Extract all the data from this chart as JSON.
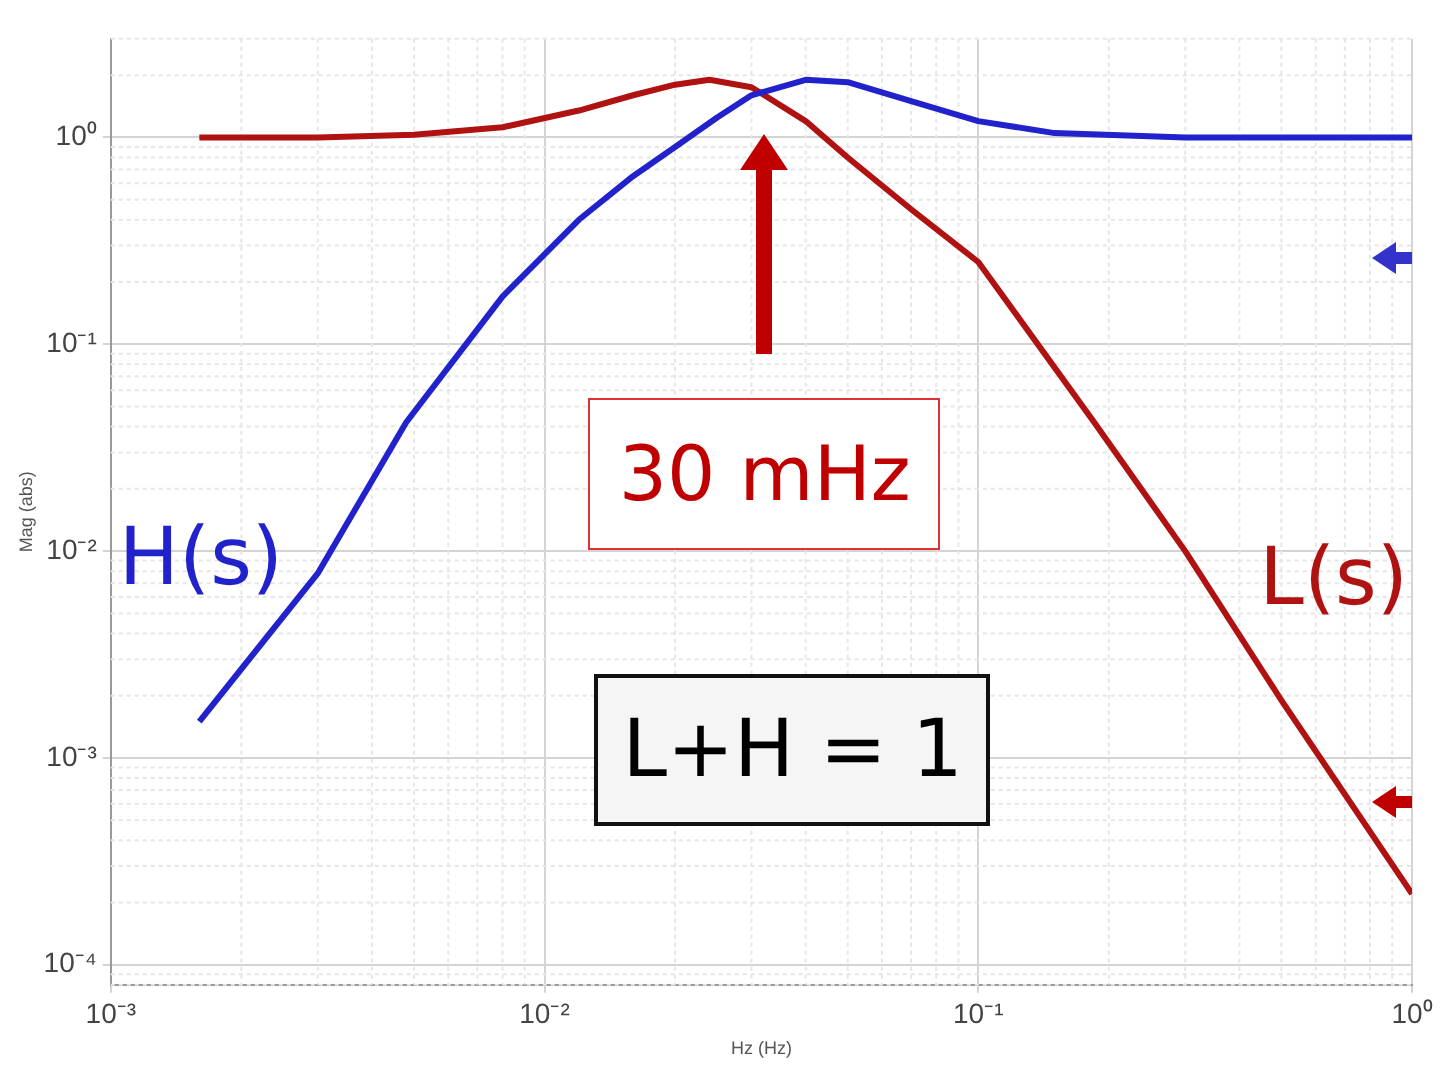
{
  "chart_data": {
    "type": "line",
    "xlabel": "Hz (Hz)",
    "ylabel": "Mag (abs)",
    "log": "xy",
    "grid": true,
    "legend": false,
    "marker": "none",
    "line_style": "solid",
    "xlim": [
      0.001,
      1
    ],
    "ylim": [
      8e-05,
      3
    ],
    "xticks": [
      {
        "value": 0.001,
        "label": "10⁻³"
      },
      {
        "value": 0.01,
        "label": "10⁻²"
      },
      {
        "value": 0.1,
        "label": "10⁻¹"
      },
      {
        "value": 1,
        "label": "10⁰"
      }
    ],
    "yticks": [
      {
        "value": 0.0001,
        "label": "10⁻⁴"
      },
      {
        "value": 0.001,
        "label": "10⁻³"
      },
      {
        "value": 0.01,
        "label": "10⁻²"
      },
      {
        "value": 0.1,
        "label": "10⁻¹"
      },
      {
        "value": 1,
        "label": "10⁰"
      }
    ],
    "series": [
      {
        "name": "H(s)",
        "color": "#2222cc",
        "x": [
          0.0016,
          0.003,
          0.0048,
          0.008,
          0.012,
          0.016,
          0.02,
          0.025,
          0.03,
          0.04,
          0.05,
          0.07,
          0.1,
          0.15,
          0.3,
          1
        ],
        "values": [
          0.0015,
          0.0078,
          0.042,
          0.17,
          0.4,
          0.65,
          0.9,
          1.25,
          1.6,
          1.9,
          1.85,
          1.5,
          1.2,
          1.05,
          1.0,
          1.0
        ]
      },
      {
        "name": "L(s)",
        "color": "#b01212",
        "x": [
          0.0016,
          0.003,
          0.005,
          0.008,
          0.012,
          0.016,
          0.02,
          0.024,
          0.03,
          0.04,
          0.05,
          0.07,
          0.1,
          0.185,
          0.3,
          0.5,
          1
        ],
        "values": [
          1.0,
          1.0,
          1.03,
          1.12,
          1.35,
          1.6,
          1.8,
          1.9,
          1.75,
          1.2,
          0.8,
          0.45,
          0.25,
          0.042,
          0.01,
          0.0019,
          0.00022
        ]
      }
    ],
    "annotations": [
      "30 mHz",
      "L+H = 1"
    ]
  }
}
